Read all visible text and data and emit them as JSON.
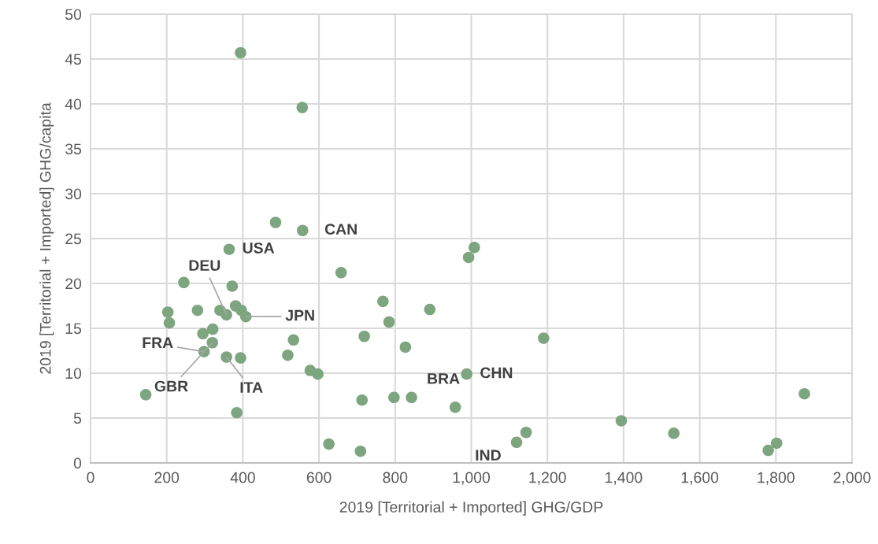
{
  "chart_data": {
    "type": "scatter",
    "xlabel": "2019 [Territorial + Imported] GHG/GDP",
    "ylabel": "2019 [Territorial + Imported] GHG/capita",
    "xlim": [
      0,
      2000
    ],
    "xticks": [
      0,
      200,
      400,
      600,
      800,
      {
        "value": 1000,
        "label": "1,000"
      },
      {
        "value": 1200,
        "label": "1,200"
      },
      {
        "value": 1400,
        "label": "1,400"
      },
      {
        "value": 1600,
        "label": "1,600"
      },
      {
        "value": 1800,
        "label": "1,800"
      },
      {
        "value": 2000,
        "label": "2,000"
      }
    ],
    "ylim": [
      0,
      50
    ],
    "yticks": [
      0,
      5,
      10,
      15,
      20,
      25,
      30,
      35,
      40,
      45,
      50
    ],
    "grid": true,
    "marker": "circle",
    "series": [
      {
        "color": "#7da57f",
        "x": [
          394,
          556,
          486,
          557,
          364,
          245,
          372,
          203,
          207,
          281,
          340,
          357,
          381,
          396,
          408,
          321,
          295,
          320,
          298,
          357,
          394,
          145,
          384,
          658,
          1008,
          993,
          768,
          891,
          784,
          719,
          533,
          827,
          518,
          577,
          597,
          988,
          713,
          797,
          843,
          958,
          626,
          709,
          1190,
          1875,
          1394,
          1532,
          1802,
          1780,
          1144,
          1119
        ],
        "values": [
          45.7,
          39.6,
          26.8,
          25.9,
          23.8,
          20.1,
          19.7,
          16.8,
          15.6,
          17.0,
          17.0,
          16.5,
          17.5,
          17.0,
          16.3,
          14.9,
          14.4,
          13.4,
          12.4,
          11.8,
          11.7,
          7.6,
          5.6,
          21.2,
          24.0,
          22.9,
          18.0,
          17.1,
          15.7,
          14.1,
          13.7,
          12.9,
          12.0,
          10.3,
          9.9,
          9.9,
          7.0,
          7.3,
          7.3,
          6.2,
          2.1,
          1.3,
          13.9,
          7.7,
          4.7,
          3.3,
          2.2,
          1.4,
          3.4,
          2.3
        ]
      }
    ],
    "annotations": [
      {
        "text": "CAN",
        "x": 557,
        "y": 25.9
      },
      {
        "text": "USA",
        "x": 364,
        "y": 23.8
      },
      {
        "text": "DEU",
        "x": 357,
        "y": 16.5
      },
      {
        "text": "JPN",
        "x": 408,
        "y": 16.3
      },
      {
        "text": "FRA",
        "x": 298,
        "y": 12.4
      },
      {
        "text": "GBR",
        "x": 320,
        "y": 13.4
      },
      {
        "text": "ITA",
        "x": 357,
        "y": 11.8
      },
      {
        "text": "BRA",
        "x": 843,
        "y": 7.3
      },
      {
        "text": "CHN",
        "x": 988,
        "y": 9.9
      },
      {
        "text": "IND",
        "x": 1119,
        "y": 2.3
      }
    ]
  }
}
